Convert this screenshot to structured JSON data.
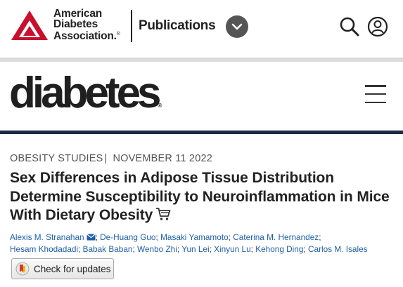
{
  "header": {
    "org_name_lines": [
      "American",
      "Diabetes",
      "Association."
    ],
    "org_reg_mark": "®",
    "publications_label": "Publications",
    "icons": {
      "logo": "ada-triangle-logo",
      "dropdown": "chevron-down-icon",
      "search": "search-icon",
      "user": "user-icon",
      "menu": "hamburger-menu-icon"
    },
    "logo_color": "#c8102e"
  },
  "journal": {
    "name": "diabetes",
    "reg_mark": "®"
  },
  "article": {
    "category": "OBESITY STUDIES",
    "separator": "|",
    "date": "NOVEMBER 11 2022",
    "title": "Sex Differences in Adipose Tissue Distribution Determine Susceptibility to Neuroinflammation in Mice With Dietary Obesity",
    "authors_line1": [
      {
        "name": "Alexis M. Stranahan",
        "sep": ";"
      },
      {
        "name": "De-Huang Guo",
        "sep": ";"
      },
      {
        "name": "Masaki Yamamoto",
        "sep": ";"
      },
      {
        "name": "Caterina M. Hernandez",
        "sep": ";"
      }
    ],
    "authors_line2": [
      {
        "name": "Hesam Khodadadi",
        "sep": ";"
      },
      {
        "name": "Babak Baban",
        "sep": ";"
      },
      {
        "name": "Wenbo Zhi",
        "sep": ";"
      },
      {
        "name": "Yun Lei",
        "sep": ";"
      },
      {
        "name": "Xinyun Lu",
        "sep": ";"
      },
      {
        "name": "Kehong Ding",
        "sep": ";"
      },
      {
        "name": "Carlos M. Isales",
        "sep": ""
      }
    ],
    "check_updates_label": "Check for updates"
  },
  "colors": {
    "author_link": "#1f5fa6",
    "navy_band": "#1d2a44",
    "accent_red": "#c8102e"
  }
}
